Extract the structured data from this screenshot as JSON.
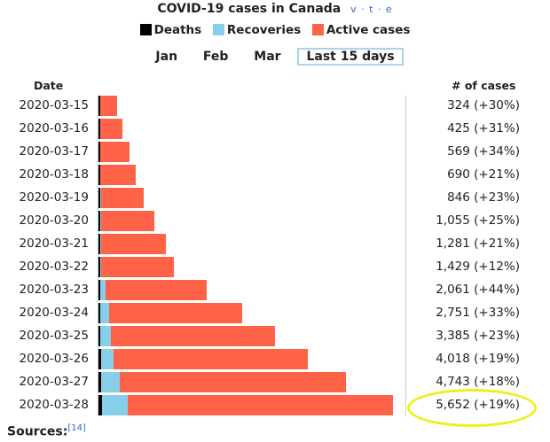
{
  "title": "COVID-19 cases in Canada",
  "vte": "v · t · e",
  "legend": [
    {
      "label": "Deaths",
      "color": "#000000"
    },
    {
      "label": "Recoveries",
      "color": "#87ceeb"
    },
    {
      "label": "Active cases",
      "color": "#ff6347"
    }
  ],
  "periods": [
    {
      "label": "Jan",
      "active": false
    },
    {
      "label": "Feb",
      "active": false
    },
    {
      "label": "Mar",
      "active": false
    },
    {
      "label": "Last 15 days",
      "active": true
    }
  ],
  "headers": {
    "date": "Date",
    "cases": "# of cases"
  },
  "sources": {
    "label": "Sources:",
    "ref": "[14]"
  },
  "chart_data": {
    "type": "bar",
    "orientation": "horizontal",
    "stacked": true,
    "title": "COVID-19 cases in Canada",
    "categories": [
      "2020-03-15",
      "2020-03-16",
      "2020-03-17",
      "2020-03-18",
      "2020-03-19",
      "2020-03-20",
      "2020-03-21",
      "2020-03-22",
      "2020-03-23",
      "2020-03-24",
      "2020-03-25",
      "2020-03-26",
      "2020-03-27",
      "2020-03-28"
    ],
    "series": [
      {
        "name": "Deaths",
        "color": "#000000",
        "values": [
          1,
          1,
          5,
          9,
          11,
          12,
          17,
          20,
          24,
          25,
          35,
          44,
          49,
          60
        ]
      },
      {
        "name": "Recoveries",
        "color": "#87ceeb",
        "values": [
          6,
          6,
          7,
          8,
          9,
          10,
          12,
          13,
          110,
          170,
          200,
          250,
          360,
          500
        ]
      },
      {
        "name": "Active cases",
        "color": "#ff6347",
        "values": [
          317,
          418,
          557,
          673,
          826,
          1033,
          1252,
          1396,
          1927,
          2556,
          3150,
          3724,
          4334,
          5092
        ]
      }
    ],
    "totals": [
      324,
      425,
      569,
      690,
      846,
      1055,
      1281,
      1429,
      2061,
      2751,
      3385,
      4018,
      4743,
      5652
    ],
    "total_labels": [
      "324 (+30%)",
      "425 (+31%)",
      "569 (+34%)",
      "690 (+21%)",
      "846 (+23%)",
      "1,055 (+25%)",
      "1,281 (+21%)",
      "1,429 (+12%)",
      "2,061 (+44%)",
      "2,751 (+33%)",
      "3,385 (+23%)",
      "4,018 (+19%)",
      "4,743 (+18%)",
      "5,652 (+19%)"
    ],
    "highlighted": "2020-03-28",
    "xlim": [
      0,
      5652
    ]
  }
}
